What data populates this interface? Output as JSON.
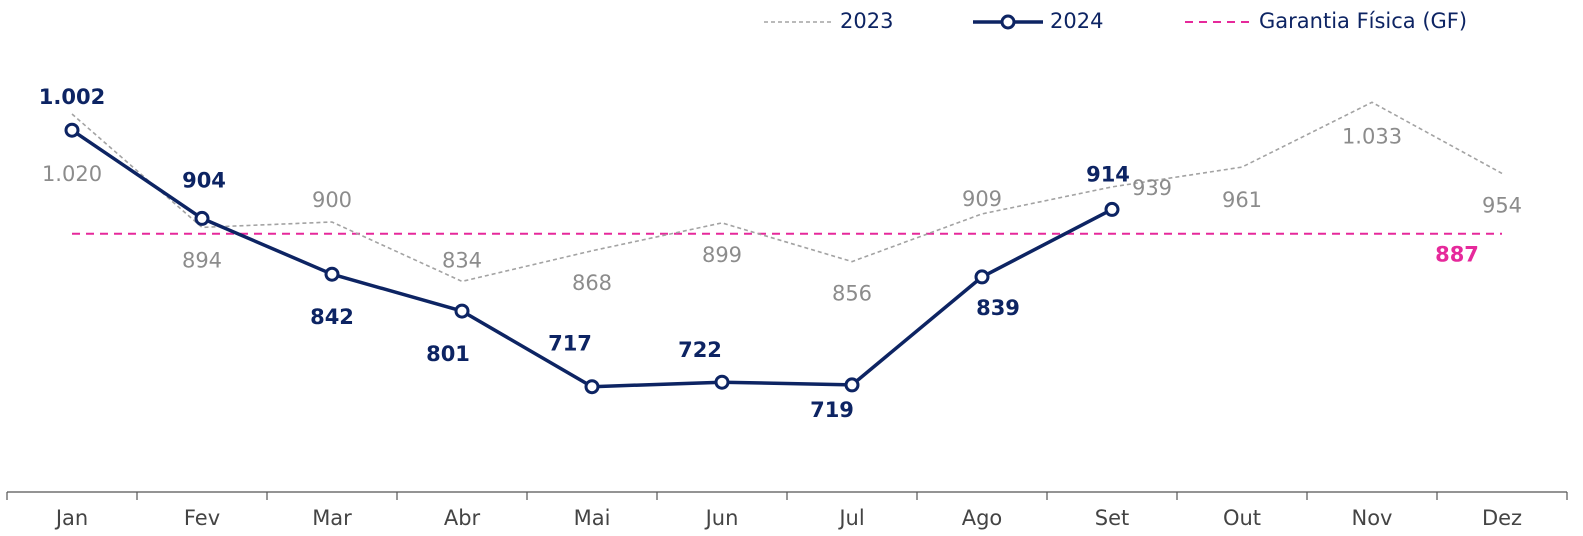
{
  "chart_data": {
    "type": "line",
    "categories": [
      "Jan",
      "Fev",
      "Mar",
      "Abr",
      "Mai",
      "Jun",
      "Jul",
      "Ago",
      "Set",
      "Out",
      "Nov",
      "Dez"
    ],
    "series": [
      {
        "name": "2023",
        "color": "#a3a3a3",
        "style": "dotted",
        "values": [
          1020,
          894,
          900,
          834,
          868,
          899,
          856,
          909,
          939,
          961,
          1033,
          954
        ],
        "value_labels": [
          "1.020",
          "894",
          "900",
          "834",
          "868",
          "899",
          "856",
          "909",
          "939",
          "961",
          "1.033",
          "954"
        ]
      },
      {
        "name": "2024",
        "color": "#0d2463",
        "style": "solid-markers",
        "values": [
          1002,
          904,
          842,
          801,
          717,
          722,
          719,
          839,
          914,
          null,
          null,
          null
        ],
        "value_labels": [
          "1.002",
          "904",
          "842",
          "801",
          "717",
          "722",
          "719",
          "839",
          "914",
          null,
          null,
          null
        ]
      }
    ],
    "reference": {
      "name": "Garantia Física (GF)",
      "value": 887,
      "color": "#e6299b"
    },
    "ylim": [
      600,
      1100
    ]
  }
}
